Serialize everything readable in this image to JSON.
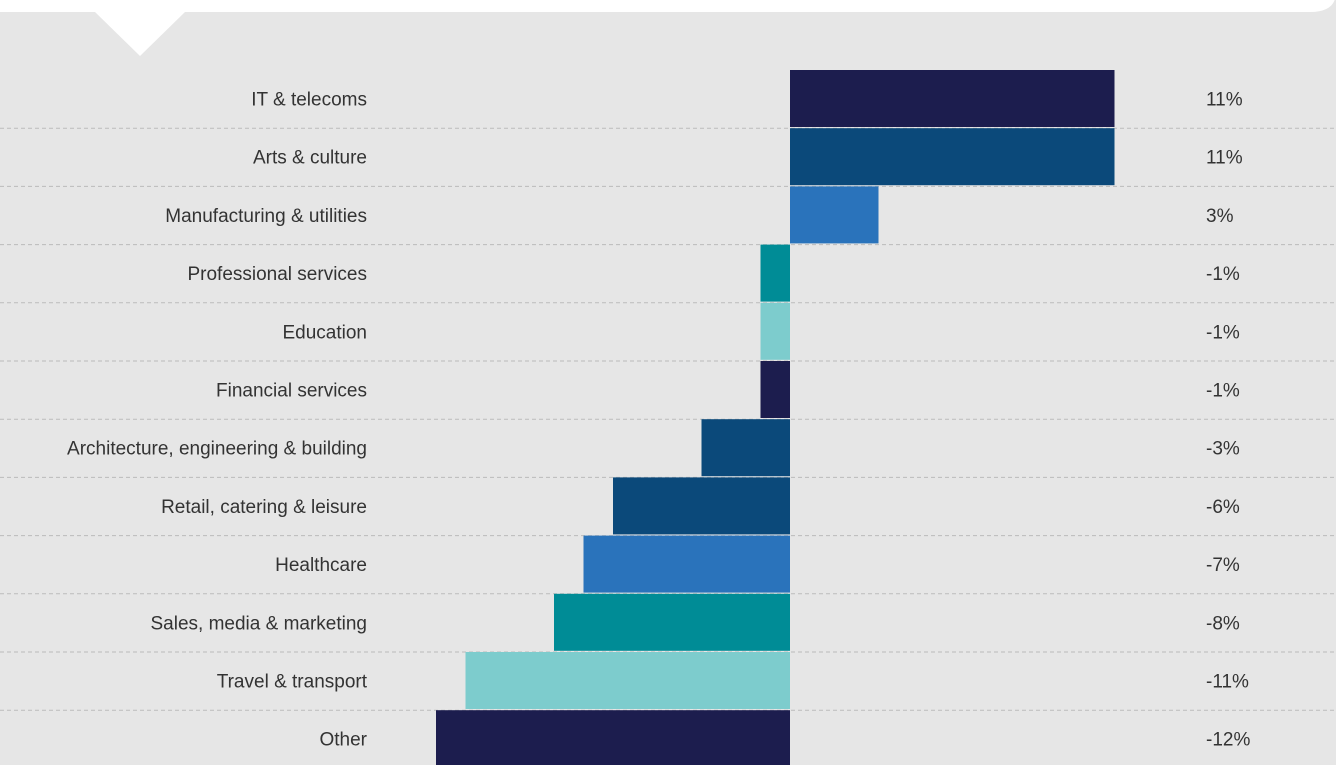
{
  "chart_data": {
    "type": "bar",
    "orientation": "horizontal",
    "title": "",
    "xlabel": "",
    "ylabel": "",
    "grid": false,
    "categories": [
      "IT & telecoms",
      "Arts & culture",
      "Manufacturing & utilities",
      "Professional services",
      "Education",
      "Financial services",
      "Architecture, engineering & building",
      "Retail, catering & leisure",
      "Healthcare",
      "Sales, media & marketing",
      "Travel & transport",
      "Other"
    ],
    "values": [
      11,
      11,
      3,
      -1,
      -1,
      -1,
      -3,
      -6,
      -7,
      -8,
      -11,
      -12
    ],
    "value_labels": [
      "11%",
      "11%",
      "3%",
      "-1%",
      "-1%",
      "-1%",
      "-3%",
      "-6%",
      "-7%",
      "-8%",
      "-11%",
      "-12%"
    ],
    "value_unit": "%",
    "colors": [
      "#1c1d4e",
      "#0b497a",
      "#2a73bb",
      "#008c96",
      "#7dcccd",
      "#1c1d4e",
      "#0b497a",
      "#0b497a",
      "#2a73bb",
      "#008c96",
      "#7dcccd",
      "#1c1d4e"
    ],
    "xlim": [
      -12,
      11
    ]
  },
  "theme": {
    "background": "#e6e6e6",
    "callout_fill": "#ffffff",
    "divider_color": "#bbbbbb",
    "text_color": "#333333"
  }
}
